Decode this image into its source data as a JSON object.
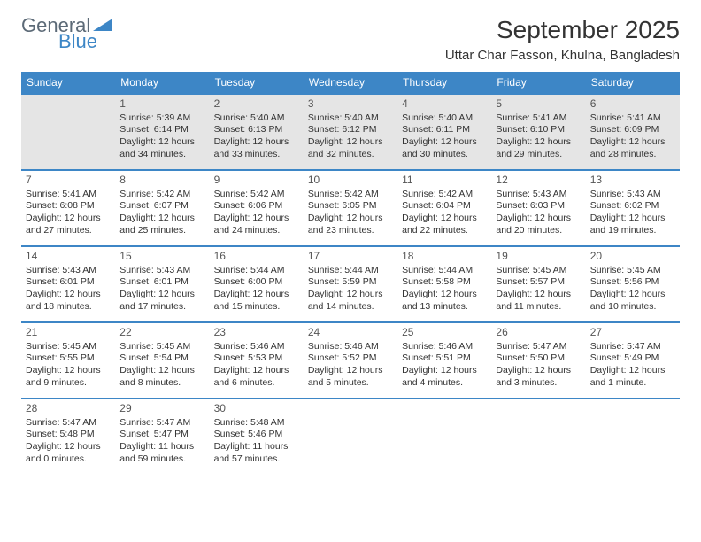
{
  "brand": {
    "line1": "General",
    "line2": "Blue"
  },
  "title": "September 2025",
  "location": "Uttar Char Fasson, Khulna, Bangladesh",
  "colors": {
    "header_bg": "#3d86c6",
    "header_text": "#ffffff",
    "row_border": "#3d86c6",
    "firstweek_bg": "#e5e5e5",
    "text": "#333333",
    "logo_gray": "#5c6a77",
    "logo_blue": "#3d86c6"
  },
  "day_headers": [
    "Sunday",
    "Monday",
    "Tuesday",
    "Wednesday",
    "Thursday",
    "Friday",
    "Saturday"
  ],
  "weeks": [
    [
      null,
      {
        "n": "1",
        "sr": "Sunrise: 5:39 AM",
        "ss": "Sunset: 6:14 PM",
        "dl": "Daylight: 12 hours and 34 minutes."
      },
      {
        "n": "2",
        "sr": "Sunrise: 5:40 AM",
        "ss": "Sunset: 6:13 PM",
        "dl": "Daylight: 12 hours and 33 minutes."
      },
      {
        "n": "3",
        "sr": "Sunrise: 5:40 AM",
        "ss": "Sunset: 6:12 PM",
        "dl": "Daylight: 12 hours and 32 minutes."
      },
      {
        "n": "4",
        "sr": "Sunrise: 5:40 AM",
        "ss": "Sunset: 6:11 PM",
        "dl": "Daylight: 12 hours and 30 minutes."
      },
      {
        "n": "5",
        "sr": "Sunrise: 5:41 AM",
        "ss": "Sunset: 6:10 PM",
        "dl": "Daylight: 12 hours and 29 minutes."
      },
      {
        "n": "6",
        "sr": "Sunrise: 5:41 AM",
        "ss": "Sunset: 6:09 PM",
        "dl": "Daylight: 12 hours and 28 minutes."
      }
    ],
    [
      {
        "n": "7",
        "sr": "Sunrise: 5:41 AM",
        "ss": "Sunset: 6:08 PM",
        "dl": "Daylight: 12 hours and 27 minutes."
      },
      {
        "n": "8",
        "sr": "Sunrise: 5:42 AM",
        "ss": "Sunset: 6:07 PM",
        "dl": "Daylight: 12 hours and 25 minutes."
      },
      {
        "n": "9",
        "sr": "Sunrise: 5:42 AM",
        "ss": "Sunset: 6:06 PM",
        "dl": "Daylight: 12 hours and 24 minutes."
      },
      {
        "n": "10",
        "sr": "Sunrise: 5:42 AM",
        "ss": "Sunset: 6:05 PM",
        "dl": "Daylight: 12 hours and 23 minutes."
      },
      {
        "n": "11",
        "sr": "Sunrise: 5:42 AM",
        "ss": "Sunset: 6:04 PM",
        "dl": "Daylight: 12 hours and 22 minutes."
      },
      {
        "n": "12",
        "sr": "Sunrise: 5:43 AM",
        "ss": "Sunset: 6:03 PM",
        "dl": "Daylight: 12 hours and 20 minutes."
      },
      {
        "n": "13",
        "sr": "Sunrise: 5:43 AM",
        "ss": "Sunset: 6:02 PM",
        "dl": "Daylight: 12 hours and 19 minutes."
      }
    ],
    [
      {
        "n": "14",
        "sr": "Sunrise: 5:43 AM",
        "ss": "Sunset: 6:01 PM",
        "dl": "Daylight: 12 hours and 18 minutes."
      },
      {
        "n": "15",
        "sr": "Sunrise: 5:43 AM",
        "ss": "Sunset: 6:01 PM",
        "dl": "Daylight: 12 hours and 17 minutes."
      },
      {
        "n": "16",
        "sr": "Sunrise: 5:44 AM",
        "ss": "Sunset: 6:00 PM",
        "dl": "Daylight: 12 hours and 15 minutes."
      },
      {
        "n": "17",
        "sr": "Sunrise: 5:44 AM",
        "ss": "Sunset: 5:59 PM",
        "dl": "Daylight: 12 hours and 14 minutes."
      },
      {
        "n": "18",
        "sr": "Sunrise: 5:44 AM",
        "ss": "Sunset: 5:58 PM",
        "dl": "Daylight: 12 hours and 13 minutes."
      },
      {
        "n": "19",
        "sr": "Sunrise: 5:45 AM",
        "ss": "Sunset: 5:57 PM",
        "dl": "Daylight: 12 hours and 11 minutes."
      },
      {
        "n": "20",
        "sr": "Sunrise: 5:45 AM",
        "ss": "Sunset: 5:56 PM",
        "dl": "Daylight: 12 hours and 10 minutes."
      }
    ],
    [
      {
        "n": "21",
        "sr": "Sunrise: 5:45 AM",
        "ss": "Sunset: 5:55 PM",
        "dl": "Daylight: 12 hours and 9 minutes."
      },
      {
        "n": "22",
        "sr": "Sunrise: 5:45 AM",
        "ss": "Sunset: 5:54 PM",
        "dl": "Daylight: 12 hours and 8 minutes."
      },
      {
        "n": "23",
        "sr": "Sunrise: 5:46 AM",
        "ss": "Sunset: 5:53 PM",
        "dl": "Daylight: 12 hours and 6 minutes."
      },
      {
        "n": "24",
        "sr": "Sunrise: 5:46 AM",
        "ss": "Sunset: 5:52 PM",
        "dl": "Daylight: 12 hours and 5 minutes."
      },
      {
        "n": "25",
        "sr": "Sunrise: 5:46 AM",
        "ss": "Sunset: 5:51 PM",
        "dl": "Daylight: 12 hours and 4 minutes."
      },
      {
        "n": "26",
        "sr": "Sunrise: 5:47 AM",
        "ss": "Sunset: 5:50 PM",
        "dl": "Daylight: 12 hours and 3 minutes."
      },
      {
        "n": "27",
        "sr": "Sunrise: 5:47 AM",
        "ss": "Sunset: 5:49 PM",
        "dl": "Daylight: 12 hours and 1 minute."
      }
    ],
    [
      {
        "n": "28",
        "sr": "Sunrise: 5:47 AM",
        "ss": "Sunset: 5:48 PM",
        "dl": "Daylight: 12 hours and 0 minutes."
      },
      {
        "n": "29",
        "sr": "Sunrise: 5:47 AM",
        "ss": "Sunset: 5:47 PM",
        "dl": "Daylight: 11 hours and 59 minutes."
      },
      {
        "n": "30",
        "sr": "Sunrise: 5:48 AM",
        "ss": "Sunset: 5:46 PM",
        "dl": "Daylight: 11 hours and 57 minutes."
      },
      null,
      null,
      null,
      null
    ]
  ]
}
